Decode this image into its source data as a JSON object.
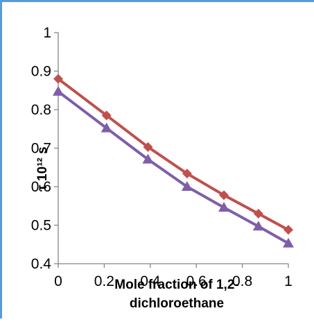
{
  "chart_data": {
    "type": "line",
    "xlabel_line1": "Mole fraction of 1,2-",
    "xlabel_line2": "dichloroethane",
    "ylabel": "τ 10¹² s",
    "xlim": [
      0,
      1
    ],
    "ylim": [
      0.4,
      1
    ],
    "x_ticks": [
      "0",
      "0.2",
      "0.4",
      "0.6",
      "0.8",
      "1"
    ],
    "y_ticks": [
      "0.4",
      "0.5",
      "0.6",
      "0.7",
      "0.8",
      "0.9",
      "1"
    ],
    "grid": false,
    "legend": "none",
    "series": [
      {
        "color": "#c0504d",
        "marker": "diamond",
        "x": [
          0,
          0.21,
          0.39,
          0.56,
          0.72,
          0.87,
          1.0
        ],
        "y": [
          0.88,
          0.785,
          0.703,
          0.634,
          0.578,
          0.53,
          0.488
        ]
      },
      {
        "color": "#7f5ea8",
        "marker": "triangle",
        "x": [
          0,
          0.21,
          0.39,
          0.56,
          0.72,
          0.87,
          1.0
        ],
        "y": [
          0.847,
          0.752,
          0.671,
          0.6,
          0.546,
          0.497,
          0.453
        ]
      }
    ]
  }
}
